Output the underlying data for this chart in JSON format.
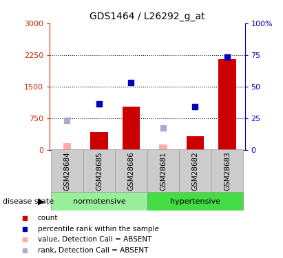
{
  "title": "GDS1464 / L26292_g_at",
  "samples": [
    "GSM28684",
    "GSM28685",
    "GSM28686",
    "GSM28681",
    "GSM28682",
    "GSM28683"
  ],
  "groups": [
    "normotensive",
    "normotensive",
    "normotensive",
    "hypertensive",
    "hypertensive",
    "hypertensive"
  ],
  "counts": [
    null,
    420,
    1020,
    null,
    320,
    2150
  ],
  "counts_absent": [
    150,
    null,
    null,
    120,
    null,
    null
  ],
  "ranks_pct": [
    null,
    36,
    53,
    null,
    34,
    73
  ],
  "ranks_absent_pct": [
    23,
    null,
    null,
    17,
    null,
    null
  ],
  "left_ylim": [
    0,
    3000
  ],
  "right_ylim": [
    0,
    100
  ],
  "left_yticks": [
    0,
    750,
    1500,
    2250,
    3000
  ],
  "right_yticks": [
    0,
    25,
    50,
    75,
    100
  ],
  "left_yticklabels": [
    "0",
    "750",
    "1500",
    "2250",
    "3000"
  ],
  "right_yticklabels": [
    "0",
    "25",
    "50",
    "75",
    "100%"
  ],
  "bar_color": "#cc0000",
  "bar_absent_color": "#ffaaaa",
  "rank_color": "#0000bb",
  "rank_absent_color": "#aaaacc",
  "normotensive_color": "#99ee99",
  "hypertensive_color": "#44dd44",
  "left_axis_color": "#cc2200",
  "right_axis_color": "#0000bb",
  "background_color": "#ffffff",
  "disease_state_label": "disease state",
  "legend_items": [
    {
      "label": "count",
      "color": "#cc0000"
    },
    {
      "label": "percentile rank within the sample",
      "color": "#0000bb"
    },
    {
      "label": "value, Detection Call = ABSENT",
      "color": "#ffaaaa"
    },
    {
      "label": "rank, Detection Call = ABSENT",
      "color": "#aaaacc"
    }
  ]
}
